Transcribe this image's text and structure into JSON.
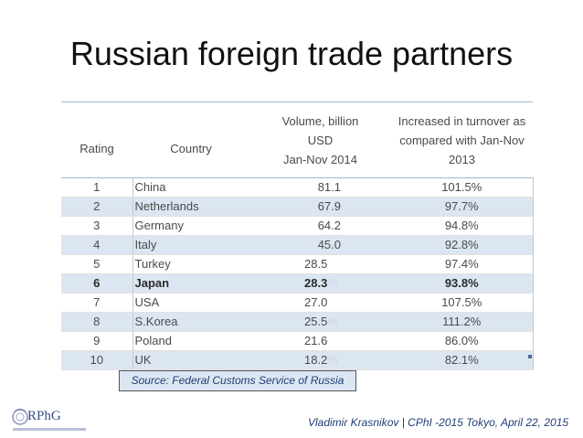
{
  "slide": {
    "title": "Russian foreign trade partners",
    "source": "Source: Federal Customs Service of Russia",
    "footer": "Vladimir Krasnikov | CPhI -2015 Tokyo, April 22, 2015",
    "logo_text": "RPhG",
    "accent_color": "#dce6f2",
    "text_color": "#1f3f74"
  },
  "table": {
    "headers": {
      "rating": "Rating",
      "country": "Country",
      "volume_line1": "Volume, billion",
      "volume_line2": "USD",
      "volume_line3": "Jan-Nov 2014",
      "increase_line1": "Increased in turnover as",
      "increase_line2": "compared with Jan-Nov",
      "increase_line3": "2013"
    },
    "rows": [
      {
        "rank": "1",
        "country": "China",
        "volume": "81.1",
        "increase": "101.5%"
      },
      {
        "rank": "2",
        "country": "Netherlands",
        "volume": "67.9",
        "increase": "97.7%"
      },
      {
        "rank": "3",
        "country": "Germany",
        "volume": "64.2",
        "increase": "94.8%"
      },
      {
        "rank": "4",
        "country": "Italy",
        "volume": "45.0",
        "increase": "92.8%"
      },
      {
        "rank": "5",
        "country": "Turkey",
        "volume": "28.5",
        "increase": "97.4%"
      },
      {
        "rank": "6",
        "country": "Japan",
        "volume": "28.3",
        "increase": "93.8%"
      },
      {
        "rank": "7",
        "country": "USA",
        "volume": "27.0",
        "increase": "107.5%"
      },
      {
        "rank": "8",
        "country": "S.Korea",
        "volume": "25.5",
        "increase": "111.2%"
      },
      {
        "rank": "9",
        "country": "Poland",
        "volume": "21.6",
        "increase": "86.0%"
      },
      {
        "rank": "10",
        "country": "UK",
        "volume": "18.2",
        "increase": "82.1%"
      }
    ]
  }
}
